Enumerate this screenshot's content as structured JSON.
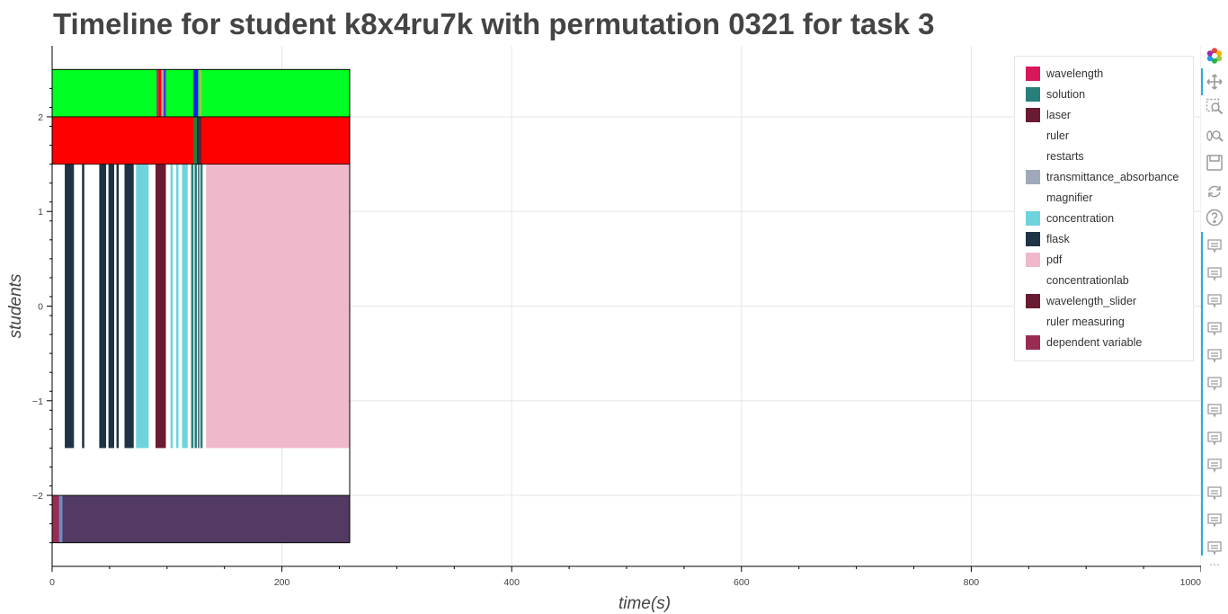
{
  "page_title": "Timeline for student k8x4ru7k with permutation 0321 for task 3",
  "chart_data": {
    "type": "bar",
    "orientation": "horizontal-timeline",
    "title": "Timeline for student k8x4ru7k with permutation 0321 for task 3",
    "xlabel": "time(s)",
    "ylabel": "students",
    "xlim": [
      0,
      1000
    ],
    "ylim": [
      -2.75,
      2.75
    ],
    "x_ticks": [
      0,
      200,
      400,
      600,
      800,
      1000
    ],
    "x_tick_labels": [
      "0",
      "200",
      "400",
      "600",
      "800",
      "1000"
    ],
    "y_ticks": [
      -2,
      -1,
      0,
      1,
      2
    ],
    "y_tick_labels": [
      "−2",
      "−1",
      "0",
      "1",
      "2"
    ],
    "grid": true,
    "legend_position": "top-right",
    "legend": [
      {
        "label": "wavelength",
        "color": "#d8175b"
      },
      {
        "label": "solution",
        "color": "#267f7b"
      },
      {
        "label": "laser",
        "color": "#6a1b31"
      },
      {
        "label": "ruler",
        "color": "#ffffff"
      },
      {
        "label": "restarts",
        "color": "#ffffff"
      },
      {
        "label": "transmittance_absorbance",
        "color": "#9fa9ba"
      },
      {
        "label": "magnifier",
        "color": "#ffffff"
      },
      {
        "label": "concentration",
        "color": "#6fd3de"
      },
      {
        "label": "flask",
        "color": "#1e3446"
      },
      {
        "label": "pdf",
        "color": "#efb8cb"
      },
      {
        "label": "concentrationlab",
        "color": "#ffffff"
      },
      {
        "label": "wavelength_slider",
        "color": "#6a1b31"
      },
      {
        "label": "ruler measuring",
        "color": "#ffffff"
      },
      {
        "label": "dependent variable",
        "color": "#9a2b55"
      }
    ],
    "rows": [
      {
        "y_range": [
          2.0,
          2.5
        ],
        "background": "#00ff22",
        "segments": [
          {
            "start": 91,
            "end": 93,
            "color": "#d8175b"
          },
          {
            "start": 93,
            "end": 95,
            "color": "#ff0000"
          },
          {
            "start": 95,
            "end": 97,
            "color": "#aaaaaa"
          },
          {
            "start": 97,
            "end": 99,
            "color": "#4a3cc8"
          },
          {
            "start": 123,
            "end": 127,
            "color": "#1a1aff"
          },
          {
            "start": 128,
            "end": 130,
            "color": "#b0c04a"
          }
        ]
      },
      {
        "y_range": [
          1.5,
          2.0
        ],
        "background": "#ff0000",
        "segments": [
          {
            "start": 123,
            "end": 126,
            "color": "#2b7d3a"
          },
          {
            "start": 126,
            "end": 128,
            "color": "#1e3446"
          },
          {
            "start": 128,
            "end": 130,
            "color": "#6a1b31"
          }
        ]
      },
      {
        "y_range": [
          -1.5,
          1.5
        ],
        "background": "#ffffff",
        "segments": [
          {
            "start": 11,
            "end": 19,
            "color": "#1e3446"
          },
          {
            "start": 26,
            "end": 28,
            "color": "#1e3446"
          },
          {
            "start": 41,
            "end": 47,
            "color": "#1e3446"
          },
          {
            "start": 49,
            "end": 54,
            "color": "#1e3446"
          },
          {
            "start": 56,
            "end": 58,
            "color": "#1e3446"
          },
          {
            "start": 63,
            "end": 71,
            "color": "#1e3446"
          },
          {
            "start": 73,
            "end": 84,
            "color": "#6fd3de"
          },
          {
            "start": 90,
            "end": 99,
            "color": "#6a1b31"
          },
          {
            "start": 103,
            "end": 105,
            "color": "#6fd3de"
          },
          {
            "start": 108,
            "end": 110,
            "color": "#6fd3de"
          },
          {
            "start": 113,
            "end": 118,
            "color": "#6fd3de"
          },
          {
            "start": 121,
            "end": 123,
            "color": "#267f7b"
          },
          {
            "start": 124,
            "end": 126,
            "color": "#267f7b"
          },
          {
            "start": 127,
            "end": 128,
            "color": "#1e3446"
          },
          {
            "start": 129,
            "end": 131,
            "color": "#267f7b"
          },
          {
            "start": 134,
            "end": 259,
            "color": "#efb8cb"
          }
        ]
      },
      {
        "y_range": [
          -2.5,
          -2.0
        ],
        "background": "#523a62",
        "segments": [
          {
            "start": 0,
            "end": 6,
            "color": "#9a2b55"
          },
          {
            "start": 6,
            "end": 9,
            "color": "#6f8bc0"
          }
        ]
      }
    ],
    "block_end": 259
  },
  "toolbar": {
    "tools": [
      {
        "name": "bokeh-logo-icon",
        "label": ""
      },
      {
        "name": "pan-icon",
        "label": ""
      },
      {
        "name": "box-zoom-icon",
        "label": ""
      },
      {
        "name": "wheel-zoom-icon",
        "label": ""
      },
      {
        "name": "save-icon",
        "label": ""
      },
      {
        "name": "reset-icon",
        "label": ""
      },
      {
        "name": "help-icon",
        "label": ""
      }
    ],
    "hover_tool_count": 12,
    "more_label": "⋯"
  }
}
